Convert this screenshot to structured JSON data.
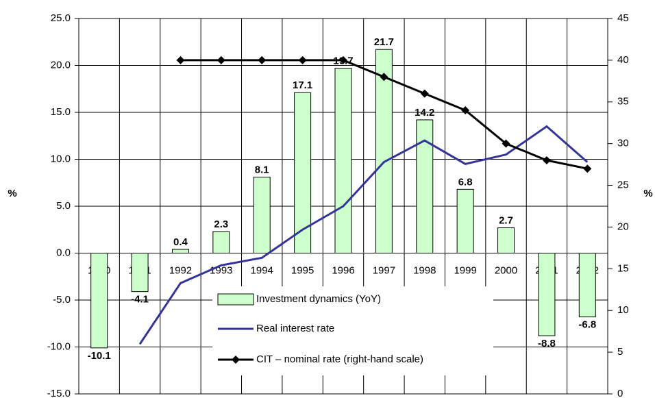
{
  "chart_data": {
    "type": "bar",
    "categories": [
      "1990",
      "1991",
      "1992",
      "1993",
      "1994",
      "1995",
      "1996",
      "1997",
      "1998",
      "1999",
      "2000",
      "2001",
      "2002"
    ],
    "series": [
      {
        "name": "Investment dynamics (YoY)",
        "type": "bar",
        "color": "#ccffcc",
        "values": [
          -10.1,
          -4.1,
          0.4,
          2.3,
          8.1,
          17.1,
          19.7,
          21.7,
          14.2,
          6.8,
          2.7,
          -8.8,
          -6.8
        ]
      },
      {
        "name": "Real interest rate",
        "type": "line",
        "color": "#333399",
        "values": [
          null,
          -9.7,
          -3.2,
          -1.3,
          -0.5,
          2.5,
          5.0,
          9.7,
          12.0,
          9.5,
          10.5,
          13.5,
          9.7
        ]
      },
      {
        "name": "CIT – nominal rate (right-hand scale)",
        "type": "line",
        "color": "#000000",
        "axis": "y2",
        "marker": "diamond",
        "values": [
          null,
          null,
          40,
          40,
          40,
          40,
          40,
          38,
          36,
          34,
          30,
          28,
          27
        ]
      }
    ],
    "ylabel": "%",
    "y2label": "%",
    "ylim": [
      -15,
      25
    ],
    "yticks": [
      {
        "value": -15,
        "label": "-15.0"
      },
      {
        "value": -10,
        "label": "-10.0"
      },
      {
        "value": -5,
        "label": "-5.0"
      },
      {
        "value": 0,
        "label": "0.0"
      },
      {
        "value": 5,
        "label": "5.0"
      },
      {
        "value": 10,
        "label": "10.0"
      },
      {
        "value": 15,
        "label": "15.0"
      },
      {
        "value": 20,
        "label": "20.0"
      },
      {
        "value": 25,
        "label": "25.0"
      }
    ],
    "y2lim": [
      0,
      45
    ],
    "y2ticks": [
      0,
      5,
      10,
      15,
      20,
      25,
      30,
      35,
      40,
      45
    ],
    "grid": true,
    "legend": "lower center"
  }
}
